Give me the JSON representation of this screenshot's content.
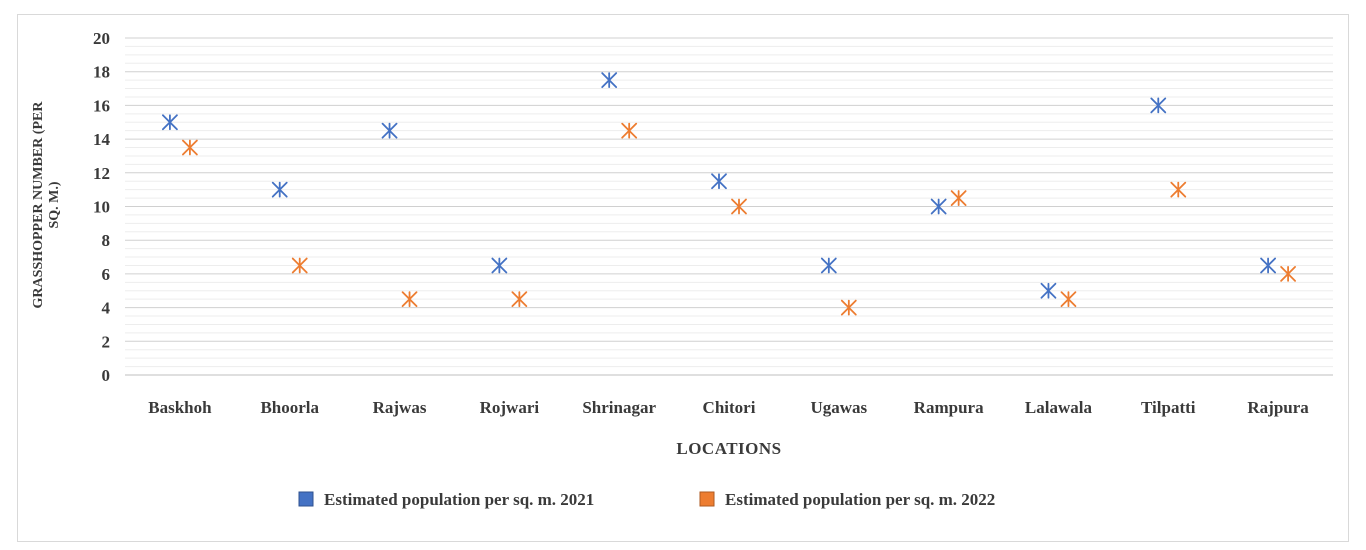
{
  "chart_data": {
    "type": "scatter",
    "title": "",
    "xlabel": "LOCATIONS",
    "ylabel_lines": [
      "GRASSHOPPER NUMBER (PER",
      "SQ. M.)"
    ],
    "ylim": [
      0,
      20
    ],
    "yticks": [
      0,
      2,
      4,
      6,
      8,
      10,
      12,
      14,
      16,
      18,
      20
    ],
    "grid": true,
    "legend_position": "bottom",
    "categories": [
      "Baskhoh",
      "Bhoorla",
      "Rajwas",
      "Rojwari",
      "Shrinagar",
      "Chitori",
      "Ugawas",
      "Rampura",
      "Lalawala",
      "Tilpatti",
      "Rajpura"
    ],
    "series": [
      {
        "name": "Estimated population per sq. m. 2021",
        "color": "#4472c4",
        "values": [
          15,
          11,
          14.5,
          6.5,
          17.5,
          11.5,
          6.5,
          10,
          5,
          16,
          6.5
        ]
      },
      {
        "name": "Estimated population per sq. m. 2022",
        "color": "#ed7d31",
        "values": [
          13.5,
          6.5,
          4.5,
          4.5,
          14.5,
          10,
          4,
          10.5,
          4.5,
          11,
          6
        ]
      }
    ]
  }
}
